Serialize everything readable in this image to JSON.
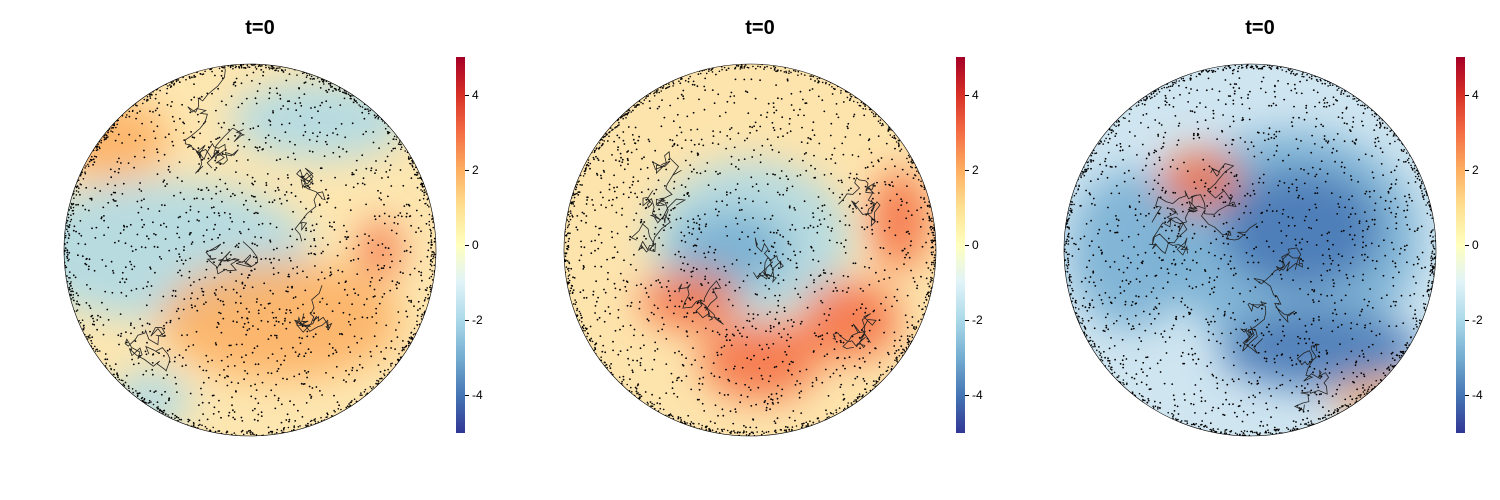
{
  "chart_data": [
    {
      "type": "heatmap",
      "title": "t=0",
      "projection": "orthographic globe, view centered near Atlantic / Africa",
      "colorbar": {
        "range": [
          -5,
          5
        ],
        "ticks": [
          "4",
          "2",
          "0",
          "-2",
          "-4"
        ],
        "colors": [
          "#313695",
          "#4575b4",
          "#74add1",
          "#abd9e9",
          "#e0f3f8",
          "#ffffbf",
          "#fee090",
          "#fdae61",
          "#f46d43",
          "#d73027",
          "#a50026"
        ]
      },
      "overlay": "black scattered observation points and coastlines",
      "field_summary": "mostly positive (≈+1) with blue bands near equator and northern regions"
    },
    {
      "type": "heatmap",
      "title": "t=0",
      "projection": "orthographic globe, view centered over Antarctica",
      "colorbar": {
        "range": [
          -5,
          5
        ],
        "ticks": [
          "4",
          "2",
          "0",
          "-2",
          "-4"
        ],
        "colors": [
          "#313695",
          "#4575b4",
          "#74add1",
          "#abd9e9",
          "#e0f3f8",
          "#ffffbf",
          "#fee090",
          "#fdae61",
          "#f46d43",
          "#d73027",
          "#a50026"
        ]
      },
      "overlay": "black scattered observation points and coastlines",
      "field_summary": "negative (≈-1.5) over Antarctica, positive ring (≈+1.5) around"
    },
    {
      "type": "heatmap",
      "title": "t=0",
      "projection": "orthographic globe, view centered over Pacific / Asia",
      "colorbar": {
        "range": [
          -5,
          5
        ],
        "ticks": [
          "4",
          "2",
          "0",
          "-2",
          "-4"
        ],
        "colors": [
          "#313695",
          "#4575b4",
          "#74add1",
          "#abd9e9",
          "#e0f3f8",
          "#ffffbf",
          "#fee090",
          "#fdae61",
          "#f46d43",
          "#d73027",
          "#a50026"
        ]
      },
      "overlay": "black scattered observation points and coastlines",
      "field_summary": "broadly negative (≈-2.5) over much of the disc, positive rim"
    }
  ]
}
